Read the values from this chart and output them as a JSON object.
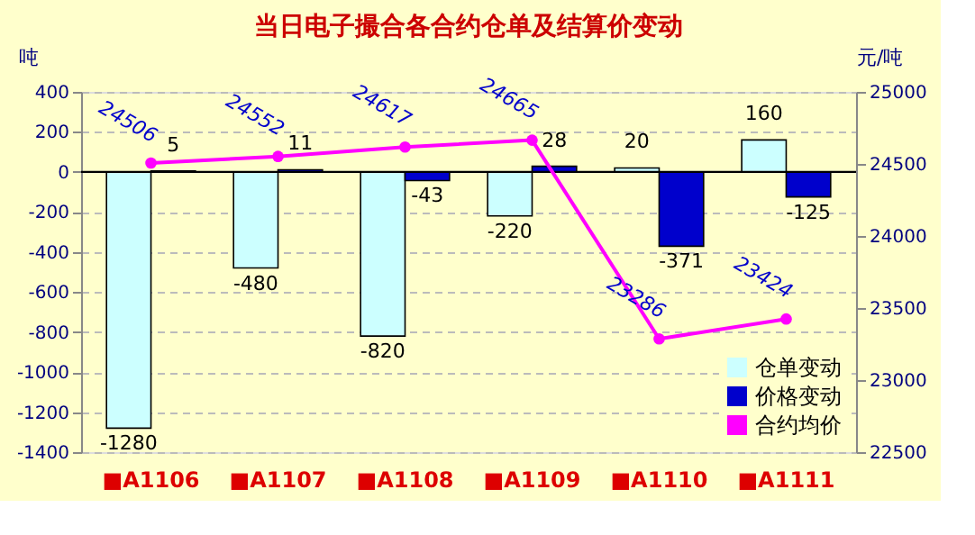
{
  "chart_data": {
    "type": "bar",
    "title": "当日电子撮合各合约仓单及结算价变动",
    "ylabel": "吨",
    "y2label": "元/吨",
    "categories": [
      "■A1106",
      "■A1107",
      "■A1108",
      "■A1109",
      "■A1110",
      "■A1111"
    ],
    "series": [
      {
        "name": "仓单变动",
        "color": "#ccffff",
        "values": [
          -1280,
          -480,
          -820,
          -220,
          20,
          160
        ]
      },
      {
        "name": "价格变动",
        "color": "#0000cc",
        "values": [
          5,
          11,
          -43,
          28,
          -371,
          -125
        ]
      },
      {
        "name": "合约均价",
        "type": "line",
        "axis": "y2",
        "color": "#ff00ff",
        "marker": "circle",
        "values": [
          24506,
          24552,
          24617,
          24665,
          23286,
          23424
        ]
      }
    ],
    "ylim": [
      -1400,
      400
    ],
    "yticks": [
      -1400,
      -1200,
      -1000,
      -800,
      -600,
      -400,
      -200,
      0,
      200,
      400
    ],
    "y2lim": [
      22500,
      25000
    ],
    "y2ticks": [
      22500,
      23000,
      23500,
      24000,
      24500,
      25000
    ],
    "ref_lines": [
      {
        "axis": "y",
        "value": 0,
        "color": "#000000"
      }
    ],
    "data_labels": true,
    "grid": "y",
    "legend": "bottom right"
  }
}
